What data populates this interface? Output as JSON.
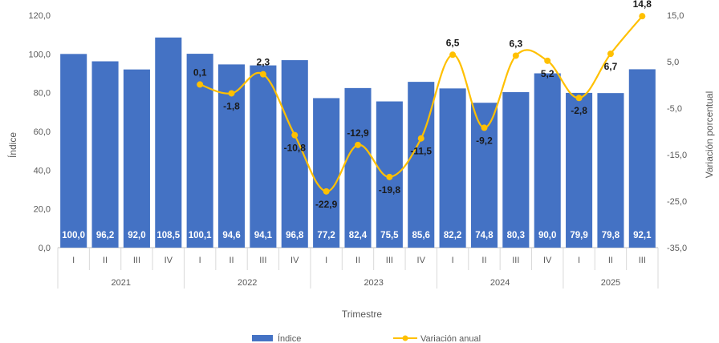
{
  "chart_data": {
    "type": "bar+line",
    "xlabel": "Trimestre",
    "ylabel_left": "Índice",
    "ylabel_right": "Variación porcentual",
    "ylim_left": [
      0,
      120
    ],
    "yticks_left": [
      "0,0",
      "20,0",
      "40,0",
      "60,0",
      "80,0",
      "100,0",
      "120,0"
    ],
    "ylim_right": [
      -35,
      15
    ],
    "yticks_right": [
      "-35,0",
      "-25,0",
      "-15,0",
      "-5,0",
      "5,0",
      "15,0"
    ],
    "quarters": [
      "I",
      "II",
      "III",
      "IV",
      "I",
      "II",
      "III",
      "IV",
      "I",
      "II",
      "III",
      "IV",
      "I",
      "II",
      "III",
      "IV",
      "I",
      "II",
      "III"
    ],
    "years": [
      {
        "label": "2021",
        "count": 4
      },
      {
        "label": "2022",
        "count": 4
      },
      {
        "label": "2023",
        "count": 4
      },
      {
        "label": "2024",
        "count": 4
      },
      {
        "label": "2025",
        "count": 3
      }
    ],
    "series": [
      {
        "name": "Índice",
        "type": "bar",
        "color": "#4472C4",
        "values": [
          100.0,
          96.2,
          92.0,
          108.5,
          100.1,
          94.6,
          94.1,
          96.8,
          77.2,
          82.4,
          75.5,
          85.6,
          82.2,
          74.8,
          80.3,
          90.0,
          79.9,
          79.8,
          92.1
        ],
        "labels": [
          "100,0",
          "96,2",
          "92,0",
          "108,5",
          "100,1",
          "94,6",
          "94,1",
          "96,8",
          "77,2",
          "82,4",
          "75,5",
          "85,6",
          "82,2",
          "74,8",
          "80,3",
          "90,0",
          "79,9",
          "79,8",
          "92,1"
        ]
      },
      {
        "name": "Variación anual",
        "type": "line",
        "color": "#FFC000",
        "values": [
          null,
          null,
          null,
          null,
          0.1,
          -1.8,
          2.3,
          -10.8,
          -22.9,
          -12.9,
          -19.8,
          -11.5,
          6.5,
          -9.2,
          6.3,
          5.2,
          -2.8,
          6.7,
          14.8
        ],
        "labels": [
          null,
          null,
          null,
          null,
          "0,1",
          "-1,8",
          "2,3",
          "-10,8",
          "-22,9",
          "-12,9",
          "-19,8",
          "-11,5",
          "6,5",
          "-9,2",
          "6,3",
          "5,2",
          "-2,8",
          "6,7",
          "14,8"
        ]
      }
    ],
    "grid": false,
    "legend": "bottom"
  }
}
